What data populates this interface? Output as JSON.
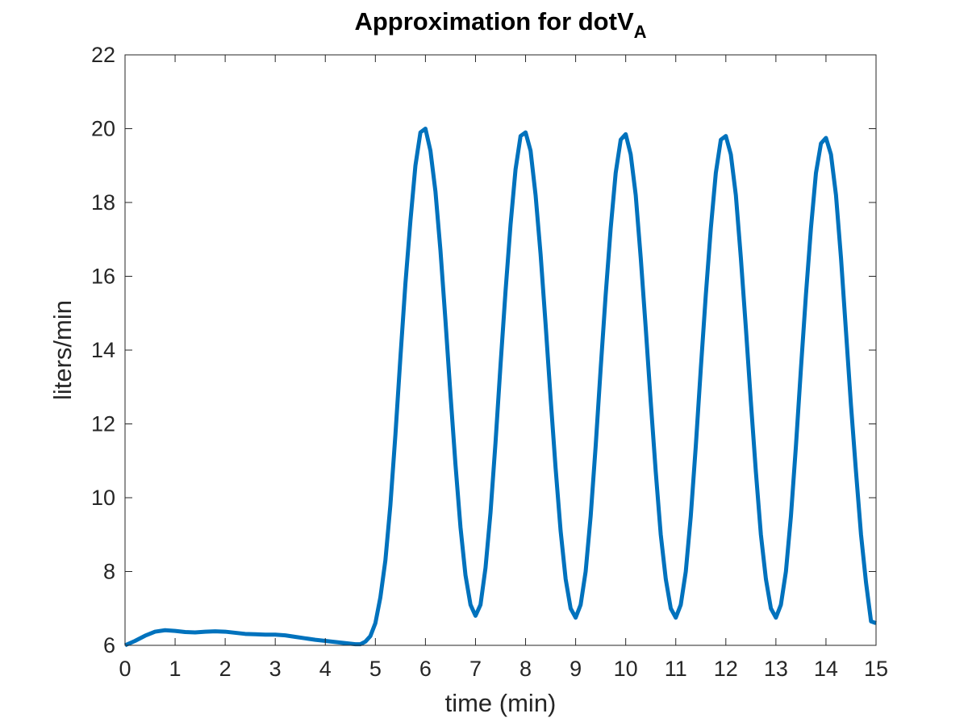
{
  "chart_data": {
    "type": "line",
    "title": "Approximation for dotV",
    "title_subscript": "A",
    "xlabel": "time (min)",
    "ylabel": "liters/min",
    "xlim": [
      0,
      15
    ],
    "ylim": [
      6,
      22
    ],
    "xticks": [
      0,
      1,
      2,
      3,
      4,
      5,
      6,
      7,
      8,
      9,
      10,
      11,
      12,
      13,
      14,
      15
    ],
    "yticks": [
      6,
      8,
      10,
      12,
      14,
      16,
      18,
      20,
      22
    ],
    "grid": false,
    "box": true,
    "line_color": "#0072BD",
    "axis_color": "#262626",
    "series": [
      {
        "x": [
          0,
          0.2,
          0.4,
          0.6,
          0.8,
          1.0,
          1.2,
          1.4,
          1.6,
          1.8,
          2.0,
          2.2,
          2.4,
          2.6,
          2.8,
          3.0,
          3.2,
          3.4,
          3.6,
          3.8,
          4.0,
          4.2,
          4.4,
          4.6,
          4.7,
          4.8,
          4.9,
          5.0,
          5.1,
          5.2,
          5.3,
          5.4,
          5.5,
          5.6,
          5.7,
          5.8,
          5.9,
          6.0,
          6.1,
          6.2,
          6.3,
          6.4,
          6.5,
          6.6,
          6.7,
          6.8,
          6.9,
          7.0,
          7.1,
          7.2,
          7.3,
          7.4,
          7.5,
          7.6,
          7.7,
          7.8,
          7.9,
          8.0,
          8.1,
          8.2,
          8.3,
          8.4,
          8.5,
          8.6,
          8.7,
          8.8,
          8.9,
          9.0,
          9.1,
          9.2,
          9.3,
          9.4,
          9.5,
          9.6,
          9.7,
          9.8,
          9.9,
          10.0,
          10.1,
          10.2,
          10.3,
          10.4,
          10.5,
          10.6,
          10.7,
          10.8,
          10.9,
          11.0,
          11.1,
          11.2,
          11.3,
          11.4,
          11.5,
          11.6,
          11.7,
          11.8,
          11.9,
          12.0,
          12.1,
          12.2,
          12.3,
          12.4,
          12.5,
          12.6,
          12.7,
          12.8,
          12.9,
          13.0,
          13.1,
          13.2,
          13.3,
          13.4,
          13.5,
          13.6,
          13.7,
          13.8,
          13.9,
          14.0,
          14.1,
          14.2,
          14.3,
          14.4,
          14.5,
          14.6,
          14.7,
          14.8,
          14.9,
          15.0
        ],
        "y": [
          6.0,
          6.12,
          6.26,
          6.37,
          6.41,
          6.39,
          6.36,
          6.35,
          6.37,
          6.38,
          6.37,
          6.34,
          6.31,
          6.3,
          6.29,
          6.29,
          6.27,
          6.23,
          6.19,
          6.15,
          6.12,
          6.09,
          6.06,
          6.03,
          6.03,
          6.1,
          6.25,
          6.6,
          7.3,
          8.3,
          9.8,
          11.7,
          13.8,
          15.8,
          17.5,
          19.0,
          19.9,
          20.0,
          19.4,
          18.3,
          16.7,
          14.8,
          12.8,
          10.9,
          9.2,
          7.9,
          7.1,
          6.8,
          7.1,
          8.1,
          9.6,
          11.5,
          13.6,
          15.6,
          17.4,
          18.9,
          19.8,
          19.9,
          19.4,
          18.2,
          16.6,
          14.7,
          12.7,
          10.8,
          9.1,
          7.8,
          7.0,
          6.75,
          7.1,
          8.0,
          9.5,
          11.4,
          13.5,
          15.5,
          17.3,
          18.8,
          19.7,
          19.85,
          19.3,
          18.2,
          16.5,
          14.6,
          12.6,
          10.7,
          9.0,
          7.8,
          7.0,
          6.75,
          7.1,
          8.0,
          9.5,
          11.4,
          13.5,
          15.5,
          17.3,
          18.8,
          19.7,
          19.8,
          19.3,
          18.2,
          16.5,
          14.6,
          12.6,
          10.7,
          9.0,
          7.8,
          7.0,
          6.75,
          7.1,
          8.0,
          9.5,
          11.4,
          13.5,
          15.5,
          17.3,
          18.8,
          19.6,
          19.75,
          19.3,
          18.2,
          16.5,
          14.5,
          12.5,
          10.7,
          9.0,
          7.7,
          6.65,
          6.6
        ]
      }
    ]
  }
}
